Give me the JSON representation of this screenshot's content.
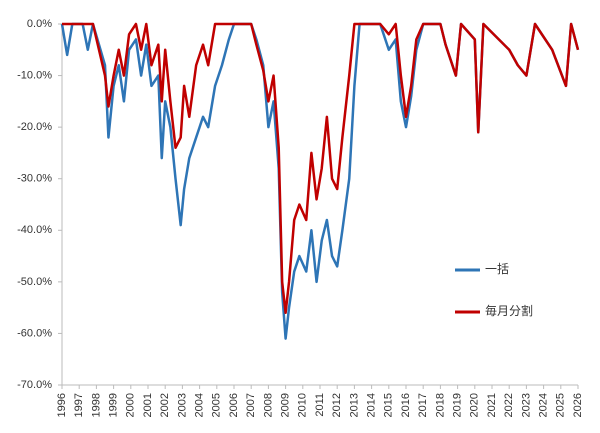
{
  "chart_data": {
    "type": "line",
    "x": [
      1996,
      1996.3,
      1996.6,
      1997.2,
      1997.5,
      1997.8,
      1998.5,
      1998.7,
      1999.0,
      1999.3,
      1999.6,
      1999.9,
      2000.3,
      2000.6,
      2000.9,
      2001.2,
      2001.6,
      2001.8,
      2002.0,
      2002.3,
      2002.6,
      2002.9,
      2003.1,
      2003.4,
      2003.8,
      2004.2,
      2004.5,
      2004.9,
      2005.3,
      2005.7,
      2006.0,
      2007.0,
      2007.3,
      2007.7,
      2008.0,
      2008.3,
      2008.6,
      2008.8,
      2009.0,
      2009.2,
      2009.5,
      2009.8,
      2010.2,
      2010.5,
      2010.8,
      2011.1,
      2011.4,
      2011.7,
      2012.0,
      2012.3,
      2012.7,
      2013.0,
      2013.3,
      2014.5,
      2015.0,
      2015.4,
      2015.7,
      2016.0,
      2016.3,
      2016.6,
      2017.0,
      2018.0,
      2018.3,
      2018.9,
      2019.2,
      2020.0,
      2020.2,
      2020.5,
      2022.0,
      2022.5,
      2023.0,
      2023.5,
      2024.5,
      2025.3,
      2025.6,
      2026.0
    ],
    "series": [
      {
        "name": "一括",
        "color": "#2e75b6",
        "values": [
          0,
          -6,
          0,
          0,
          -5,
          0,
          -8,
          -22,
          -12,
          -8,
          -15,
          -5,
          -3,
          -10,
          -4,
          -12,
          -10,
          -26,
          -15,
          -20,
          -30,
          -39,
          -32,
          -26,
          -22,
          -18,
          -20,
          -12,
          -8,
          -3,
          0,
          0,
          -3,
          -8,
          -20,
          -15,
          -28,
          -52,
          -61,
          -55,
          -48,
          -45,
          -48,
          -40,
          -50,
          -42,
          -38,
          -45,
          -47,
          -40,
          -30,
          -12,
          0,
          0,
          -5,
          -3,
          -15,
          -20,
          -14,
          -5,
          0,
          0,
          -4,
          -10,
          0,
          -3,
          -21,
          0,
          -5,
          -8,
          -10,
          0,
          -5,
          -12,
          0,
          -5
        ]
      },
      {
        "name": "毎月分割",
        "color": "#c00000",
        "values": [
          0,
          0,
          0,
          0,
          0,
          0,
          -10,
          -16,
          -10,
          -5,
          -10,
          -2,
          0,
          -5,
          0,
          -8,
          -4,
          -15,
          -5,
          -15,
          -24,
          -22,
          -12,
          -18,
          -8,
          -4,
          -8,
          0,
          0,
          0,
          0,
          0,
          -4,
          -9,
          -15,
          -10,
          -24,
          -50,
          -56,
          -50,
          -38,
          -35,
          -38,
          -25,
          -34,
          -28,
          -18,
          -30,
          -32,
          -22,
          -10,
          0,
          0,
          0,
          -2,
          0,
          -10,
          -18,
          -12,
          -3,
          0,
          0,
          -4,
          -10,
          0,
          -3,
          -21,
          0,
          -5,
          -8,
          -10,
          0,
          -5,
          -12,
          0,
          -5
        ]
      }
    ],
    "xlim": [
      1996,
      2026
    ],
    "xticks": [
      1996,
      1997,
      1998,
      1999,
      2000,
      2001,
      2002,
      2003,
      2004,
      2005,
      2006,
      2007,
      2008,
      2009,
      2010,
      2011,
      2012,
      2013,
      2014,
      2015,
      2016,
      2017,
      2018,
      2019,
      2020,
      2021,
      2022,
      2023,
      2024,
      2025,
      2026
    ],
    "ylim": [
      -70,
      0
    ],
    "yticks": [
      {
        "value": 0,
        "label": "0.0%"
      },
      {
        "value": -10,
        "label": "-10.0%"
      },
      {
        "value": -20,
        "label": "-20.0%"
      },
      {
        "value": -30,
        "label": "-30.0%"
      },
      {
        "value": -40,
        "label": "-40.0%"
      },
      {
        "value": -50,
        "label": "-50.0%"
      },
      {
        "value": -60,
        "label": "-60.0%"
      },
      {
        "value": -70,
        "label": "-70.0%"
      }
    ]
  }
}
